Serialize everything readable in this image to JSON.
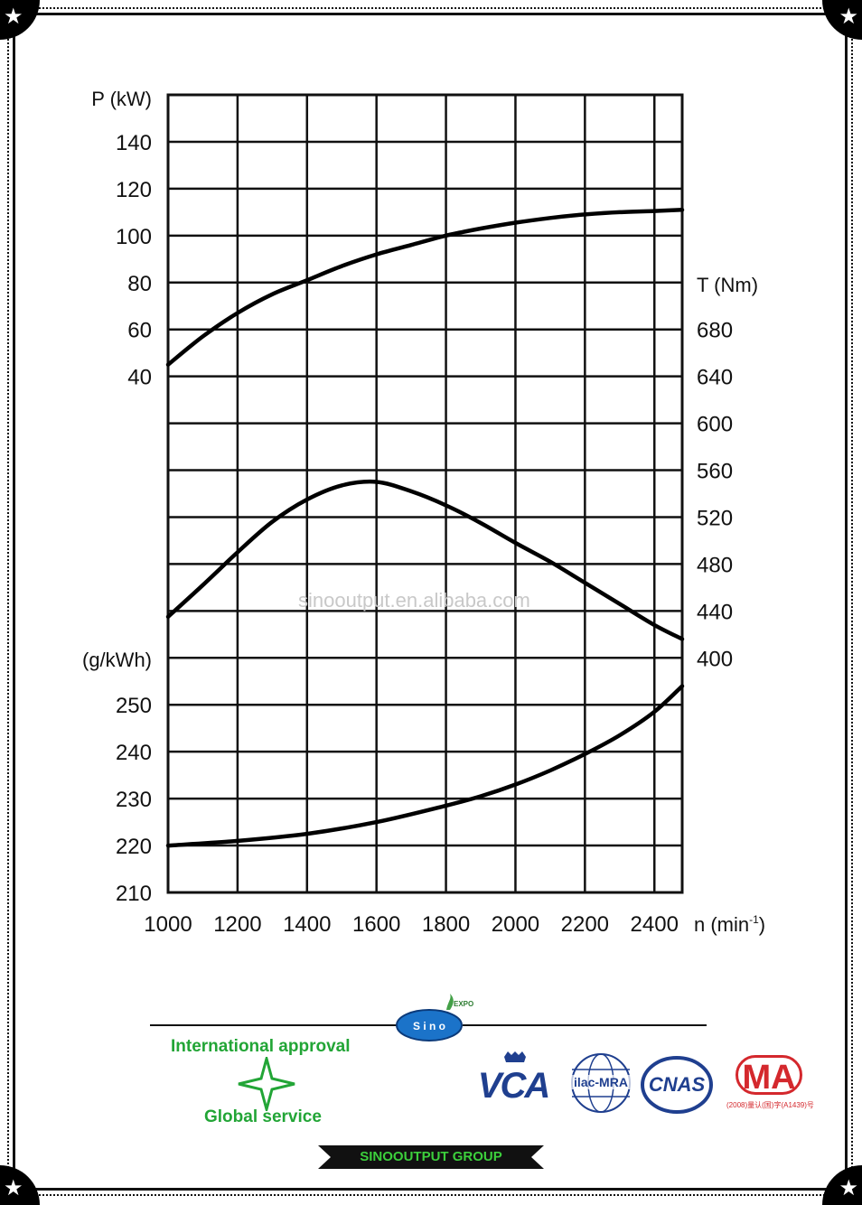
{
  "chart_data": {
    "type": "line",
    "x_axis": {
      "label": "n (min",
      "superscript": "-1",
      "label_close": ")",
      "ticks": [
        "1000",
        "1200",
        "1400",
        "1600",
        "1800",
        "2000",
        "2200",
        "2400"
      ],
      "range": [
        1000,
        2480
      ]
    },
    "power_axis": {
      "label": "P (kW)",
      "ticks": [
        "140",
        "120",
        "100",
        "80",
        "60",
        "40"
      ]
    },
    "torque_axis": {
      "label": "T (Nm)",
      "ticks": [
        "680",
        "640",
        "600",
        "560",
        "520",
        "480",
        "440",
        "400"
      ]
    },
    "fuel_axis": {
      "label": "(g/kWh)",
      "ticks": [
        "250",
        "240",
        "230",
        "220",
        "210"
      ]
    },
    "grid": true,
    "series": [
      {
        "key": "power",
        "unit": "kW",
        "x": [
          1000,
          1100,
          1200,
          1300,
          1400,
          1500,
          1600,
          1700,
          1800,
          1900,
          2000,
          2100,
          2200,
          2300,
          2400,
          2480
        ],
        "y": [
          45,
          57,
          67,
          75,
          81,
          87,
          92,
          96,
          100,
          103,
          105.5,
          107.5,
          109,
          110,
          110.5,
          111
        ]
      },
      {
        "key": "torque",
        "unit": "Nm",
        "x": [
          1000,
          1100,
          1200,
          1300,
          1400,
          1500,
          1600,
          1700,
          1800,
          1900,
          2000,
          2100,
          2200,
          2300,
          2400,
          2480
        ],
        "y": [
          435,
          462,
          490,
          516,
          535,
          547,
          550,
          542,
          530,
          515,
          498,
          482,
          464,
          446,
          428,
          416
        ]
      },
      {
        "key": "fuel_consumption",
        "unit": "g/kWh",
        "x": [
          1000,
          1200,
          1400,
          1600,
          1800,
          1900,
          2000,
          2100,
          2200,
          2300,
          2400,
          2480
        ],
        "y": [
          220,
          221,
          222.5,
          225,
          228.5,
          230.5,
          233,
          236,
          239.5,
          243.5,
          248.5,
          254
        ]
      }
    ]
  },
  "watermark": "sinooutput.en.alibaba.com",
  "footer": {
    "international_approval": "International approval",
    "global_service": "Global service",
    "company": "SINOOUTPUT GROUP",
    "sino_badge": "S i n o",
    "expo_mark": "EXPO",
    "logos": {
      "vca": "VCA",
      "ilac": "ilac-MRA",
      "cnas": "CNAS",
      "ma": "MA",
      "ma_caption": "(2008)量认(国)字(A1439)号"
    },
    "colors": {
      "green": "#22a536",
      "red": "#d4282d",
      "blue": "#1f3f8f"
    }
  }
}
